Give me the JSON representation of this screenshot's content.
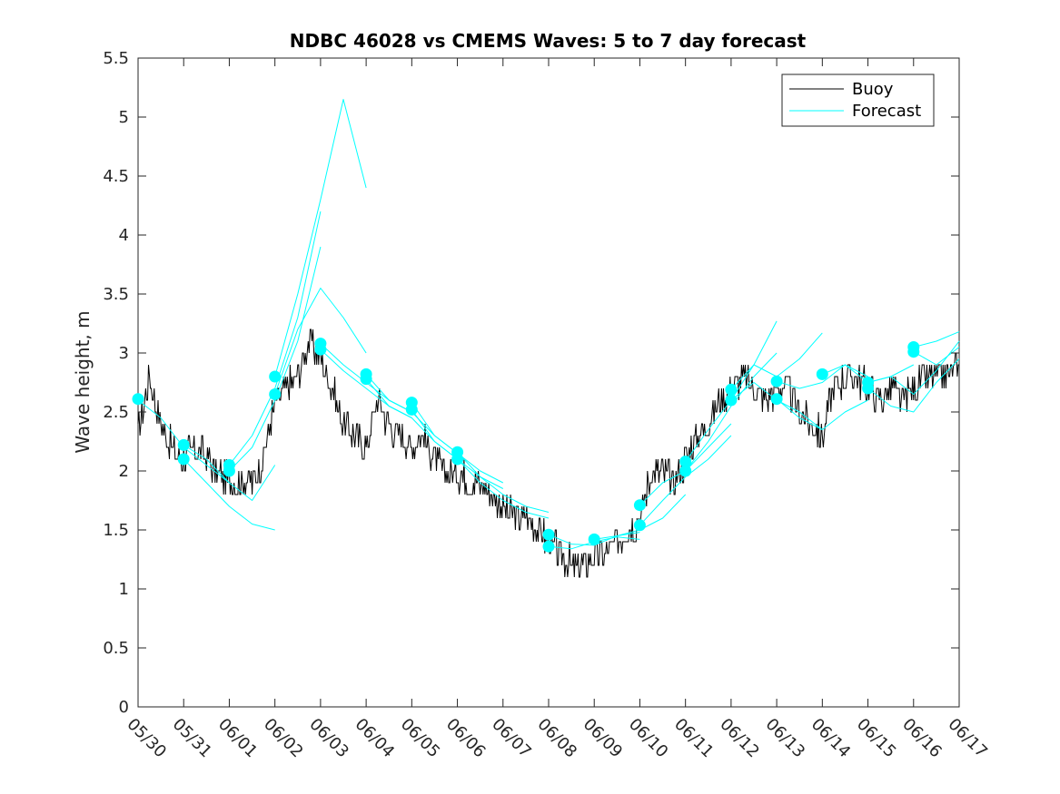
{
  "chart_data": {
    "type": "line",
    "title": "NDBC 46028 vs CMEMS Waves: 5 to 7 day forecast",
    "xlabel": "",
    "ylabel": "Wave height, m",
    "xlim": [
      "05/30",
      "06/17"
    ],
    "ylim": [
      0,
      5.5
    ],
    "x_tick_labels": [
      "05/30",
      "05/31",
      "06/01",
      "06/02",
      "06/03",
      "06/04",
      "06/05",
      "06/06",
      "06/07",
      "06/08",
      "06/09",
      "06/10",
      "06/11",
      "06/12",
      "06/13",
      "06/14",
      "06/15",
      "06/16",
      "06/17"
    ],
    "y_tick_labels": [
      "0",
      "0.5",
      "1",
      "1.5",
      "2",
      "2.5",
      "3",
      "3.5",
      "4",
      "4.5",
      "5",
      "5.5"
    ],
    "grid": false,
    "legend_position": "top-right",
    "colors": {
      "buoy": "#000000",
      "forecast": "#00ffff"
    },
    "series": [
      {
        "name": "Buoy",
        "x": [
          "05/30 00:00",
          "05/30 06:00",
          "05/30 12:00",
          "05/30 18:00",
          "05/31 00:00",
          "05/31 06:00",
          "05/31 12:00",
          "05/31 18:00",
          "06/01 00:00",
          "06/01 06:00",
          "06/01 12:00",
          "06/01 18:00",
          "06/02 00:00",
          "06/02 06:00",
          "06/02 12:00",
          "06/02 18:00",
          "06/03 00:00",
          "06/03 06:00",
          "06/03 12:00",
          "06/03 18:00",
          "06/04 00:00",
          "06/04 06:00",
          "06/04 12:00",
          "06/04 18:00",
          "06/05 00:00",
          "06/05 06:00",
          "06/05 12:00",
          "06/05 18:00",
          "06/06 00:00",
          "06/06 06:00",
          "06/06 12:00",
          "06/06 18:00",
          "06/07 00:00",
          "06/07 06:00",
          "06/07 12:00",
          "06/07 18:00",
          "06/08 00:00",
          "06/08 06:00",
          "06/08 12:00",
          "06/08 18:00",
          "06/09 00:00",
          "06/09 06:00",
          "06/09 12:00",
          "06/09 18:00",
          "06/10 00:00",
          "06/10 06:00",
          "06/10 12:00",
          "06/10 18:00",
          "06/11 00:00",
          "06/11 06:00",
          "06/11 12:00",
          "06/11 18:00",
          "06/12 00:00",
          "06/12 06:00",
          "06/12 12:00",
          "06/12 18:00",
          "06/13 00:00",
          "06/13 06:00",
          "06/13 12:00",
          "06/13 18:00",
          "06/14 00:00",
          "06/14 06:00",
          "06/14 12:00",
          "06/14 18:00",
          "06/15 00:00",
          "06/15 06:00",
          "06/15 12:00",
          "06/15 18:00",
          "06/16 00:00",
          "06/16 06:00",
          "06/16 12:00",
          "06/16 18:00",
          "06/17 00:00"
        ],
        "y": [
          2.3,
          2.8,
          2.4,
          2.2,
          2.1,
          2.2,
          2.1,
          2.0,
          1.9,
          1.9,
          1.9,
          2.1,
          2.6,
          2.7,
          2.8,
          3.1,
          3.0,
          2.7,
          2.4,
          2.3,
          2.2,
          2.6,
          2.4,
          2.3,
          2.2,
          2.3,
          2.1,
          2.0,
          2.0,
          1.9,
          1.9,
          1.8,
          1.7,
          1.6,
          1.6,
          1.5,
          1.4,
          1.3,
          1.2,
          1.2,
          1.3,
          1.3,
          1.4,
          1.5,
          1.6,
          2.0,
          2.0,
          1.9,
          2.1,
          2.3,
          2.4,
          2.6,
          2.7,
          2.8,
          2.7,
          2.6,
          2.7,
          2.7,
          2.5,
          2.4,
          2.3,
          2.7,
          2.8,
          2.8,
          2.7,
          2.6,
          2.7,
          2.6,
          2.7,
          2.8,
          2.8,
          2.8,
          2.9
        ]
      },
      {
        "name": "Forecast",
        "segments": [
          {
            "x": [
              "05/30 00:00",
              "05/30 12:00",
              "05/31 00:00",
              "05/31 12:00",
              "06/01 00:00"
            ],
            "y": [
              2.6,
              2.45,
              2.2,
              2.05,
              1.9
            ]
          },
          {
            "x": [
              "05/31 00:00",
              "05/31 12:00",
              "06/01 00:00",
              "06/01 12:00",
              "06/02 00:00"
            ],
            "y": [
              2.22,
              2.1,
              1.9,
              1.75,
              2.05
            ]
          },
          {
            "x": [
              "05/31 00:00",
              "05/31 12:00",
              "06/01 00:00",
              "06/01 12:00",
              "06/02 00:00"
            ],
            "y": [
              2.1,
              1.9,
              1.7,
              1.55,
              1.5
            ]
          },
          {
            "x": [
              "06/01 00:00",
              "06/01 12:00",
              "06/02 00:00",
              "06/02 12:00",
              "06/03 00:00"
            ],
            "y": [
              2.05,
              2.3,
              2.7,
              3.3,
              4.2
            ]
          },
          {
            "x": [
              "06/01 00:00",
              "06/01 12:00",
              "06/02 00:00",
              "06/02 12:00",
              "06/03 00:00"
            ],
            "y": [
              2.0,
              2.2,
              2.6,
              3.1,
              3.9
            ]
          },
          {
            "x": [
              "06/02 00:00",
              "06/02 12:00",
              "06/03 00:00",
              "06/03 12:00",
              "06/04 00:00"
            ],
            "y": [
              2.8,
              3.5,
              4.3,
              5.15,
              4.4
            ]
          },
          {
            "x": [
              "06/02 00:00",
              "06/02 12:00",
              "06/03 00:00",
              "06/03 12:00",
              "06/04 00:00"
            ],
            "y": [
              2.65,
              3.2,
              3.55,
              3.3,
              3.0
            ]
          },
          {
            "x": [
              "06/03 00:00",
              "06/03 12:00",
              "06/04 00:00",
              "06/04 12:00",
              "06/05 00:00"
            ],
            "y": [
              3.08,
              2.9,
              2.75,
              2.6,
              2.5
            ]
          },
          {
            "x": [
              "06/03 00:00",
              "06/03 12:00",
              "06/04 00:00",
              "06/04 12:00",
              "06/05 00:00"
            ],
            "y": [
              3.03,
              2.85,
              2.7,
              2.55,
              2.45
            ]
          },
          {
            "x": [
              "06/04 00:00",
              "06/04 12:00",
              "06/05 00:00",
              "06/05 12:00",
              "06/06 00:00"
            ],
            "y": [
              2.82,
              2.6,
              2.5,
              2.3,
              2.15
            ]
          },
          {
            "x": [
              "06/04 00:00",
              "06/04 12:00",
              "06/05 00:00",
              "06/05 12:00",
              "06/06 00:00"
            ],
            "y": [
              2.78,
              2.55,
              2.45,
              2.25,
              2.1
            ]
          },
          {
            "x": [
              "06/05 00:00",
              "06/05 12:00",
              "06/06 00:00",
              "06/06 12:00",
              "06/07 00:00"
            ],
            "y": [
              2.58,
              2.3,
              2.15,
              2.0,
              1.9
            ]
          },
          {
            "x": [
              "06/05 00:00",
              "06/05 12:00",
              "06/06 00:00",
              "06/06 12:00",
              "06/07 00:00"
            ],
            "y": [
              2.52,
              2.25,
              2.1,
              1.95,
              1.85
            ]
          },
          {
            "x": [
              "06/06 00:00",
              "06/06 12:00",
              "06/07 00:00",
              "06/07 12:00",
              "06/08 00:00"
            ],
            "y": [
              2.16,
              1.95,
              1.8,
              1.7,
              1.65
            ]
          },
          {
            "x": [
              "06/06 00:00",
              "06/06 12:00",
              "06/07 00:00",
              "06/07 12:00",
              "06/08 00:00"
            ],
            "y": [
              2.1,
              1.9,
              1.75,
              1.65,
              1.6
            ]
          },
          {
            "x": [
              "06/08 00:00",
              "06/08 12:00",
              "06/09 00:00",
              "06/09 12:00",
              "06/10 00:00"
            ],
            "y": [
              1.46,
              1.38,
              1.37,
              1.45,
              1.48
            ]
          },
          {
            "x": [
              "06/08 00:00",
              "06/08 12:00",
              "06/09 00:00",
              "06/09 12:00",
              "06/10 00:00"
            ],
            "y": [
              1.36,
              1.34,
              1.4,
              1.44,
              1.42
            ]
          },
          {
            "x": [
              "06/09 00:00",
              "06/09 12:00",
              "06/10 00:00",
              "06/10 12:00",
              "06/11 00:00"
            ],
            "y": [
              1.42,
              1.45,
              1.5,
              1.6,
              1.8
            ]
          },
          {
            "x": [
              "06/10 00:00",
              "06/10 12:00",
              "06/11 00:00",
              "06/11 12:00",
              "06/12 00:00"
            ],
            "y": [
              1.71,
              1.9,
              2.0,
              2.2,
              2.4
            ]
          },
          {
            "x": [
              "06/10 00:00",
              "06/10 12:00",
              "06/11 00:00",
              "06/11 12:00",
              "06/12 00:00"
            ],
            "y": [
              1.54,
              1.75,
              1.95,
              2.1,
              2.3
            ]
          },
          {
            "x": [
              "06/11 00:00",
              "06/11 12:00",
              "06/12 00:00",
              "06/12 12:00",
              "06/13 00:00"
            ],
            "y": [
              2.08,
              2.35,
              2.6,
              2.9,
              3.27
            ]
          },
          {
            "x": [
              "06/11 00:00",
              "06/11 12:00",
              "06/12 00:00",
              "06/12 12:00",
              "06/13 00:00"
            ],
            "y": [
              2.0,
              2.25,
              2.55,
              2.8,
              3.0
            ]
          },
          {
            "x": [
              "06/12 00:00",
              "06/12 12:00",
              "06/13 00:00",
              "06/13 12:00",
              "06/14 00:00"
            ],
            "y": [
              2.69,
              2.9,
              2.8,
              2.95,
              3.17
            ]
          },
          {
            "x": [
              "06/12 00:00",
              "06/12 12:00",
              "06/13 00:00",
              "06/13 12:00",
              "06/14 00:00"
            ],
            "y": [
              2.6,
              2.75,
              2.6,
              2.5,
              2.35
            ]
          },
          {
            "x": [
              "06/13 00:00",
              "06/13 12:00",
              "06/14 00:00",
              "06/14 12:00",
              "06/15 00:00"
            ],
            "y": [
              2.76,
              2.7,
              2.75,
              2.9,
              2.8
            ]
          },
          {
            "x": [
              "06/13 00:00",
              "06/13 12:00",
              "06/14 00:00",
              "06/14 12:00",
              "06/15 00:00"
            ],
            "y": [
              2.61,
              2.45,
              2.35,
              2.5,
              2.6
            ]
          },
          {
            "x": [
              "06/14 00:00",
              "06/14 12:00",
              "06/15 00:00",
              "06/15 12:00",
              "06/16 00:00"
            ],
            "y": [
              2.82,
              2.9,
              2.75,
              2.8,
              2.9
            ]
          },
          {
            "x": [
              "06/15 00:00",
              "06/15 12:00",
              "06/16 00:00",
              "06/16 12:00",
              "06/17 00:00"
            ],
            "y": [
              2.75,
              2.8,
              2.65,
              2.85,
              3.1
            ]
          },
          {
            "x": [
              "06/15 00:00",
              "06/15 12:00",
              "06/16 00:00",
              "06/16 12:00",
              "06/17 00:00"
            ],
            "y": [
              2.7,
              2.55,
              2.5,
              2.75,
              2.95
            ]
          },
          {
            "x": [
              "06/16 00:00",
              "06/16 12:00",
              "06/17 00:00"
            ],
            "y": [
              3.05,
              3.1,
              3.18
            ]
          },
          {
            "x": [
              "06/16 00:00",
              "06/16 12:00",
              "06/17 00:00"
            ],
            "y": [
              3.01,
              2.9,
              3.05
            ]
          }
        ],
        "initial_points": {
          "x": [
            "05/30 00:00",
            "05/31 00:00",
            "05/31 00:00",
            "06/01 00:00",
            "06/01 00:00",
            "06/02 00:00",
            "06/02 00:00",
            "06/03 00:00",
            "06/03 00:00",
            "06/04 00:00",
            "06/04 00:00",
            "06/05 00:00",
            "06/05 00:00",
            "06/06 00:00",
            "06/06 00:00",
            "06/08 00:00",
            "06/08 00:00",
            "06/09 00:00",
            "06/10 00:00",
            "06/10 00:00",
            "06/11 00:00",
            "06/11 00:00",
            "06/12 00:00",
            "06/12 00:00",
            "06/13 00:00",
            "06/13 00:00",
            "06/14 00:00",
            "06/15 00:00",
            "06/15 00:00",
            "06/16 00:00",
            "06/16 00:00"
          ],
          "y": [
            2.61,
            2.22,
            2.1,
            2.05,
            2.0,
            2.8,
            2.65,
            3.08,
            3.03,
            2.82,
            2.78,
            2.58,
            2.52,
            2.16,
            2.1,
            1.46,
            1.36,
            1.42,
            1.71,
            1.54,
            2.08,
            2.0,
            2.69,
            2.6,
            2.76,
            2.61,
            2.82,
            2.75,
            2.7,
            3.05,
            3.01
          ]
        }
      }
    ]
  }
}
